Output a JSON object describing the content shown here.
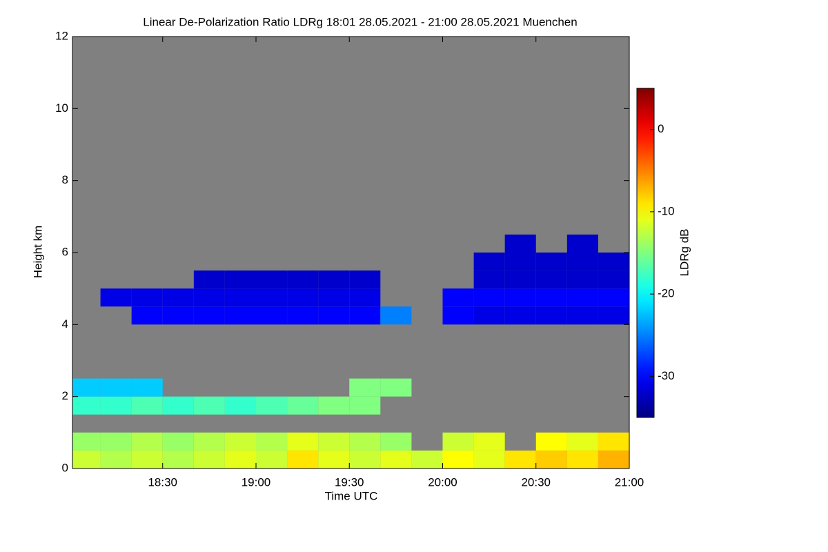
{
  "chart_data": {
    "type": "heatmap",
    "title": "Linear De-Polarization Ratio LDRg   18:01 28.05.2021 - 21:00 28.05.2021 Muenchen",
    "x_label": "Time UTC",
    "y_label": "Height km",
    "colorbar_label": "LDRg dB",
    "xlim": [
      1081,
      1260
    ],
    "xticks": [
      {
        "value": 1110,
        "label": "18:30"
      },
      {
        "value": 1140,
        "label": "19:00"
      },
      {
        "value": 1170,
        "label": "19:30"
      },
      {
        "value": 1200,
        "label": "20:00"
      },
      {
        "value": 1230,
        "label": "20:30"
      },
      {
        "value": 1260,
        "label": "21:00"
      }
    ],
    "ylim": [
      0,
      12
    ],
    "yticks": [
      0,
      2,
      4,
      6,
      8,
      10,
      12
    ],
    "zlim": [
      -35,
      5
    ],
    "zticks": [
      0,
      -10,
      -20,
      -30
    ],
    "colormap": "jet",
    "background": "#808080",
    "x_bins": [
      1081,
      1090,
      1100,
      1110,
      1120,
      1130,
      1140,
      1150,
      1160,
      1170,
      1180,
      1190,
      1200,
      1210,
      1220,
      1230,
      1240,
      1250,
      1260
    ],
    "y_bins": [
      0,
      0.5,
      1,
      1.5,
      2,
      2.5,
      3,
      3.5,
      4,
      4.5,
      5,
      5.5,
      6,
      6.5
    ],
    "z": [
      [
        -12,
        -13,
        -12,
        -13,
        -12,
        -11,
        -12,
        -9,
        -11,
        -12,
        -11,
        -12,
        -10,
        -11,
        -9,
        -8,
        -9,
        -7
      ],
      [
        -14,
        -14,
        -13,
        -14,
        -13,
        -12,
        -13,
        -11,
        -12,
        -13,
        -14,
        null,
        -12,
        -11,
        null,
        -10,
        -11,
        -9
      ],
      [
        null,
        null,
        null,
        null,
        null,
        null,
        null,
        null,
        null,
        null,
        null,
        null,
        null,
        null,
        null,
        null,
        null,
        null
      ],
      [
        -18,
        -18,
        -17,
        -18,
        -17,
        -18,
        -17,
        -16,
        -15,
        -15,
        null,
        null,
        null,
        null,
        null,
        null,
        null,
        null
      ],
      [
        -22,
        -22,
        -22,
        null,
        null,
        null,
        null,
        null,
        null,
        -15,
        -15,
        null,
        null,
        null,
        null,
        null,
        null,
        null
      ],
      [
        null,
        null,
        null,
        null,
        null,
        null,
        null,
        null,
        null,
        null,
        null,
        null,
        null,
        null,
        null,
        null,
        null,
        null
      ],
      [
        null,
        null,
        null,
        null,
        null,
        null,
        null,
        null,
        null,
        null,
        null,
        null,
        null,
        null,
        null,
        null,
        null,
        null
      ],
      [
        null,
        null,
        null,
        null,
        null,
        null,
        null,
        null,
        null,
        null,
        null,
        null,
        null,
        null,
        null,
        null,
        null,
        null
      ],
      [
        null,
        null,
        -30,
        -30,
        -30,
        -30,
        -30,
        -30,
        -30,
        -30,
        -25,
        null,
        -30,
        -31,
        -31,
        -31,
        -31,
        -31
      ],
      [
        null,
        -31,
        -31,
        -31,
        -31,
        -31,
        -31,
        -31,
        -31,
        -31,
        null,
        null,
        -30,
        -30,
        -30,
        -30,
        -30,
        -30
      ],
      [
        null,
        null,
        null,
        null,
        -32,
        -32,
        -32,
        -32,
        -32,
        -32,
        null,
        null,
        null,
        -32,
        -32,
        -32,
        -32,
        -32
      ],
      [
        null,
        null,
        null,
        null,
        null,
        null,
        null,
        null,
        null,
        null,
        null,
        null,
        null,
        -32,
        -32,
        -32,
        -32,
        -32
      ],
      [
        null,
        null,
        null,
        null,
        null,
        null,
        null,
        null,
        null,
        null,
        null,
        null,
        null,
        null,
        -32,
        null,
        -32,
        null
      ]
    ]
  }
}
